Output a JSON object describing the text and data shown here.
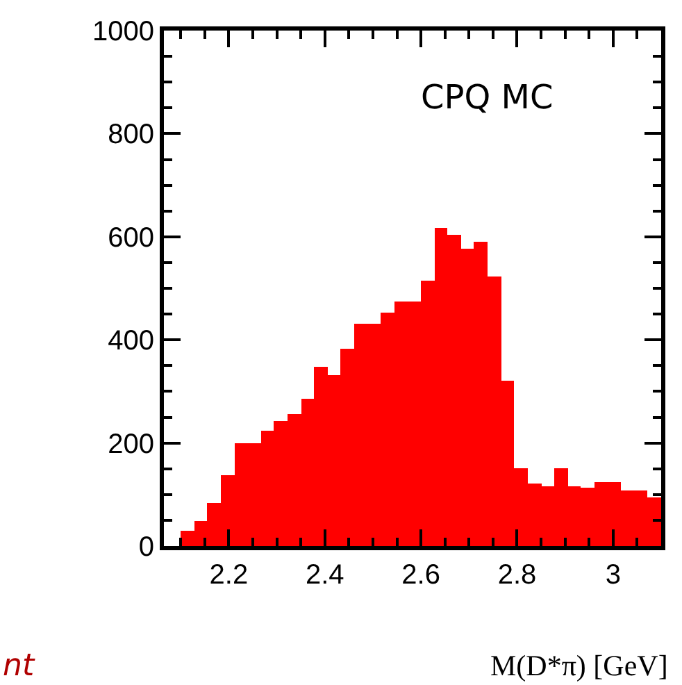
{
  "chart_data": {
    "type": "histogram",
    "xlabel": "M(D*π) [GeV]",
    "bins": [
      2.1,
      2.128,
      2.156,
      2.183,
      2.211,
      2.239,
      2.267,
      2.294,
      2.322,
      2.35,
      2.378,
      2.406,
      2.433,
      2.461,
      2.489,
      2.517,
      2.544,
      2.572,
      2.6,
      2.628,
      2.656,
      2.683,
      2.711,
      2.739,
      2.767,
      2.794,
      2.822,
      2.85,
      2.878,
      2.906,
      2.933,
      2.961,
      2.989,
      3.017,
      3.044,
      3.072,
      3.1
    ],
    "values": [
      30,
      48,
      84,
      138,
      200,
      200,
      223,
      242,
      255,
      286,
      349,
      331,
      384,
      430,
      430,
      452,
      474,
      474,
      514,
      618,
      605,
      578,
      589,
      524,
      322,
      151,
      121,
      115,
      151,
      116,
      112,
      124,
      124,
      107,
      107,
      94
    ],
    "color": "#ff0000",
    "xlim": [
      2.065,
      3.1
    ],
    "xticks": [
      2.2,
      2.4,
      2.6,
      2.8,
      3
    ],
    "ylim": [
      0,
      1000
    ],
    "yticks": [
      0,
      200,
      400,
      600,
      800,
      1000
    ],
    "annotations": [
      "CPQ MC",
      "nt"
    ]
  }
}
